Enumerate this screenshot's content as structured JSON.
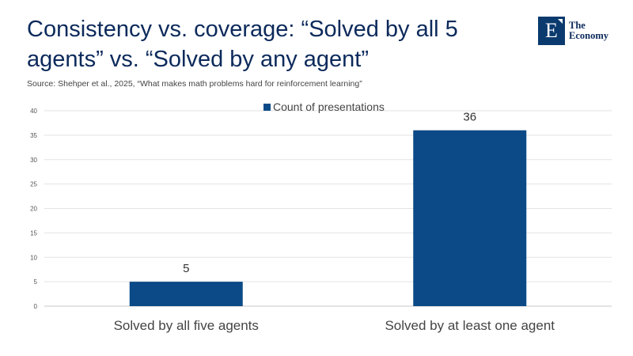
{
  "header": {
    "title": "Consistency vs. coverage: “Solved by all 5 agents” vs. “Solved by any agent”",
    "source": "Source:  Shehper et al., 2025, “What makes math problems hard for reinforcement learning”"
  },
  "logo": {
    "badge_letter": "E",
    "line1": "The",
    "line2": "Economy",
    "color": "#0b3a6e"
  },
  "chart_data": {
    "type": "bar",
    "categories": [
      "Solved by all five agents",
      "Solved by at least one agent"
    ],
    "series": [
      {
        "name": "Count of presentations",
        "values": [
          5,
          36
        ],
        "color": "#0b4a87"
      }
    ],
    "ylim": [
      0,
      40
    ],
    "yticks": [
      0,
      5,
      10,
      15,
      20,
      25,
      30,
      35,
      40
    ],
    "data_labels": [
      "5",
      "36"
    ],
    "grid": true,
    "legend_position": "top-center",
    "xlabel": "",
    "ylabel": ""
  }
}
